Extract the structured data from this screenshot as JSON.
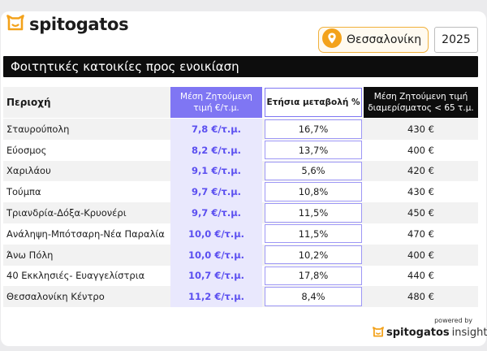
{
  "brand": {
    "name": "spitogatos",
    "icon": "cat-icon"
  },
  "filters": {
    "city": "Θεσσαλονίκη",
    "city_icon": "location-pin-icon",
    "year": "2025"
  },
  "title": "Φοιτητικές κατοικίες προς ενοικίαση",
  "table": {
    "headers": {
      "area": "Περιοχή",
      "price_line1": "Μέση Ζητούμενη",
      "price_line2": "τιμή €/τ.μ.",
      "change": "Ετήσια μεταβολή %",
      "apt_line1": "Μέση Ζητούμενη τιμή",
      "apt_line2": "διαμερίσματος < 65 τ.μ."
    },
    "rows": [
      {
        "area": "Σταυρούπολη",
        "price": "7,8 €/τ.μ.",
        "change": "16,7%",
        "apt": "430 €"
      },
      {
        "area": "Εύοσμος",
        "price": "8,2 €/τ.μ.",
        "change": "13,7%",
        "apt": "400 €"
      },
      {
        "area": "Χαριλάου",
        "price": "9,1 €/τ.μ.",
        "change": "5,6%",
        "apt": "420 €"
      },
      {
        "area": "Τούμπα",
        "price": "9,7 €/τ.μ.",
        "change": "10,8%",
        "apt": "430 €"
      },
      {
        "area": "Τριανδρία-Δόξα-Κρυονέρι",
        "price": "9,7 €/τ.μ.",
        "change": "11,5%",
        "apt": "450 €"
      },
      {
        "area": "Ανάληψη-Μπότσαρη-Νέα Παραλία",
        "price": "10,0 €/τ.μ.",
        "change": "11,5%",
        "apt": "470 €"
      },
      {
        "area": "Άνω Πόλη",
        "price": "10,0 €/τ.μ.",
        "change": "10,2%",
        "apt": "400 €"
      },
      {
        "area": "40 Εκκλησιές- Ευαγγελίστρια",
        "price": "10,7 €/τ.μ.",
        "change": "17,8%",
        "apt": "440 €"
      },
      {
        "area": "Θεσσαλονίκη Κέντρο",
        "price": "11,2 €/τ.μ.",
        "change": "8,4%",
        "apt": "480 €"
      }
    ]
  },
  "footer": {
    "powered_by": "powered by",
    "brand": "spitogatos",
    "sub": "insights"
  },
  "colors": {
    "accent": "#7f76f3",
    "accent_light": "#e9e8fd",
    "price_text": "#5b4ff0",
    "orange": "#f3a21b",
    "dark": "#0d0d0d"
  }
}
